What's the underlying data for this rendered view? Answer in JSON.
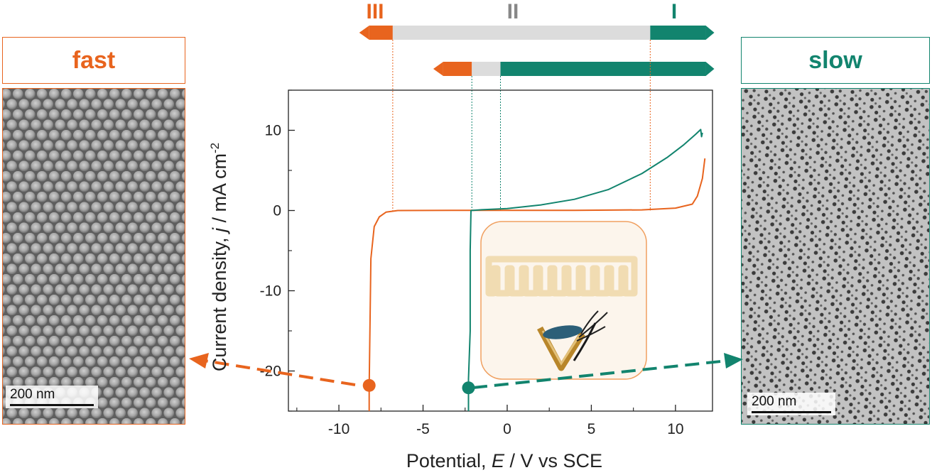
{
  "colors": {
    "fast": "#e8641e",
    "slow": "#12846e",
    "gap": "#dcdcdc",
    "inset_bg": "#fcf5ec",
    "pore": "#f1dcb2"
  },
  "left_panel": {
    "label": "fast",
    "scale_text": "200 nm",
    "icon": "sem-micrograph-close-packed-particles"
  },
  "right_panel": {
    "label": "slow",
    "scale_text": "200 nm",
    "icon": "sem-micrograph-porous-film"
  },
  "regimes": [
    "III",
    "II",
    "I"
  ],
  "inset": {
    "icon": "porous-template-and-dip-pen-illustration"
  },
  "chart_data": {
    "type": "line",
    "xlabel_main": "Potential, ",
    "xlabel_var": "E",
    "xlabel_unit": " / V vs SCE",
    "ylabel_main": "Current density, ",
    "ylabel_var": "j",
    "ylabel_unit": " / mA cm",
    "ylabel_sup": "-2",
    "xlim": [
      -13,
      12.2
    ],
    "ylim": [
      -25,
      15
    ],
    "xticks": [
      -10,
      -5,
      0,
      5,
      10
    ],
    "xtick_labels": [
      "-10",
      "-5",
      "0",
      "5",
      "10"
    ],
    "yticks": [
      -20,
      -10,
      0,
      10
    ],
    "ytick_labels": [
      "-20",
      "-10",
      "0",
      "10"
    ],
    "series": [
      {
        "color": "#e8641e",
        "points": [
          [
            -8.2,
            -25
          ],
          [
            -8.2,
            -22
          ],
          [
            -8.1,
            -6
          ],
          [
            -7.9,
            -2
          ],
          [
            -7.6,
            -0.8
          ],
          [
            -7.2,
            -0.2
          ],
          [
            -6.5,
            0
          ],
          [
            -2,
            0.03
          ],
          [
            4,
            0.03
          ],
          [
            8,
            0.08
          ],
          [
            10,
            0.3
          ],
          [
            11,
            0.8
          ],
          [
            11.3,
            1.8
          ],
          [
            11.6,
            4
          ],
          [
            11.75,
            6.5
          ]
        ]
      },
      {
        "color": "#12846e",
        "points": [
          [
            -2.3,
            -25
          ],
          [
            -2.3,
            -21
          ],
          [
            -2.2,
            -15
          ],
          [
            -2.2,
            -5
          ],
          [
            -2.15,
            0
          ],
          [
            -1.5,
            0.1
          ],
          [
            0,
            0.25
          ],
          [
            2,
            0.7
          ],
          [
            4,
            1.4
          ],
          [
            6,
            2.6
          ],
          [
            8,
            4.6
          ],
          [
            9.5,
            6.6
          ],
          [
            10.5,
            8.2
          ],
          [
            11.2,
            9.5
          ],
          [
            11.5,
            10.1
          ],
          [
            11.55,
            9.2
          ],
          [
            11.6,
            9.7
          ]
        ]
      }
    ],
    "markers": [
      {
        "x": -8.2,
        "y": -21.8,
        "color": "#e8641e"
      },
      {
        "x": -2.3,
        "y": -22.1,
        "color": "#12846e"
      }
    ],
    "bars": [
      {
        "segments": [
          {
            "from": -8.2,
            "to": -6.8,
            "color": "#e8641e"
          },
          {
            "from": -6.8,
            "to": 8.5,
            "color": "#dcdcdc"
          },
          {
            "from": 8.5,
            "to": 11.8,
            "color": "#12846e"
          }
        ]
      },
      {
        "segments": [
          {
            "from": -3.8,
            "to": -2.1,
            "color": "#e8641e"
          },
          {
            "from": -2.1,
            "to": -0.4,
            "color": "#dcdcdc"
          },
          {
            "from": -0.4,
            "to": 11.8,
            "color": "#12846e"
          }
        ]
      }
    ],
    "guides": [
      {
        "x": -6.8,
        "color": "#e8641e",
        "from_bar": 0
      },
      {
        "x": 8.5,
        "color": "#e8641e",
        "from_bar": 0
      },
      {
        "x": -2.1,
        "color": "#12846e",
        "from_bar": 1
      },
      {
        "x": -0.4,
        "color": "#12846e",
        "from_bar": 1
      }
    ],
    "regime_positions": [
      -6.8,
      1.0,
      9.9
    ]
  }
}
